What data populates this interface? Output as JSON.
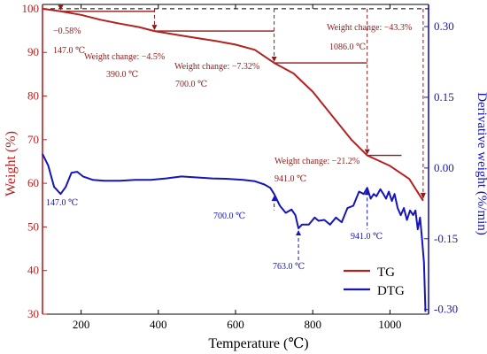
{
  "chart_data": {
    "type": "line",
    "xlabel": "Temperature (℃)",
    "ylabel_left": "Weight (%)",
    "ylabel_right": "Derivative weight (%/min)",
    "xlim": [
      100,
      1100
    ],
    "ylim_left": [
      30,
      101
    ],
    "ylim_right": [
      -0.31,
      0.347
    ],
    "x_ticks": [
      200,
      400,
      600,
      800,
      1000
    ],
    "y_left_ticks": [
      30,
      40,
      50,
      60,
      70,
      80,
      90,
      100
    ],
    "y_right_ticks": [
      -0.3,
      -0.15,
      0.0,
      0.15,
      0.3
    ],
    "y_right_tick_labels": [
      "-0.30",
      "-0.15",
      "0.00",
      "0.15",
      "0.30"
    ],
    "colors": {
      "tg": "#b22222",
      "dtg": "#1515b8",
      "left_axis": "#b22222",
      "right_axis": "#1515b8",
      "annotation_dark": "#8b1a1a"
    },
    "grid": false,
    "legend_position": "bottom-right",
    "series": [
      {
        "name": "TG",
        "axis": "left",
        "points": [
          [
            100,
            100
          ],
          [
            147,
            99.42
          ],
          [
            200,
            98.6
          ],
          [
            250,
            97.5
          ],
          [
            300,
            96.6
          ],
          [
            350,
            95.8
          ],
          [
            390,
            94.9
          ],
          [
            450,
            94.0
          ],
          [
            500,
            93.3
          ],
          [
            550,
            92.6
          ],
          [
            600,
            91.8
          ],
          [
            650,
            90.6
          ],
          [
            700,
            87.6
          ],
          [
            750,
            85.2
          ],
          [
            800,
            81.0
          ],
          [
            850,
            75.5
          ],
          [
            900,
            70.0
          ],
          [
            941,
            66.4
          ],
          [
            1000,
            64.0
          ],
          [
            1050,
            61.0
          ],
          [
            1086,
            56.0
          ]
        ]
      },
      {
        "name": "DTG",
        "axis": "right",
        "points": [
          [
            100,
            0.03
          ],
          [
            115,
            0.005
          ],
          [
            130,
            -0.04
          ],
          [
            147,
            -0.055
          ],
          [
            160,
            -0.04
          ],
          [
            175,
            -0.01
          ],
          [
            190,
            -0.008
          ],
          [
            205,
            -0.018
          ],
          [
            230,
            -0.025
          ],
          [
            260,
            -0.027
          ],
          [
            300,
            -0.027
          ],
          [
            340,
            -0.025
          ],
          [
            380,
            -0.025
          ],
          [
            420,
            -0.022
          ],
          [
            460,
            -0.018
          ],
          [
            500,
            -0.02
          ],
          [
            540,
            -0.022
          ],
          [
            580,
            -0.023
          ],
          [
            620,
            -0.025
          ],
          [
            650,
            -0.028
          ],
          [
            675,
            -0.035
          ],
          [
            690,
            -0.042
          ],
          [
            700,
            -0.055
          ],
          [
            715,
            -0.08
          ],
          [
            730,
            -0.095
          ],
          [
            745,
            -0.088
          ],
          [
            755,
            -0.1
          ],
          [
            763,
            -0.128
          ],
          [
            772,
            -0.12
          ],
          [
            790,
            -0.12
          ],
          [
            805,
            -0.105
          ],
          [
            815,
            -0.112
          ],
          [
            830,
            -0.11
          ],
          [
            845,
            -0.12
          ],
          [
            860,
            -0.105
          ],
          [
            875,
            -0.115
          ],
          [
            890,
            -0.085
          ],
          [
            905,
            -0.08
          ],
          [
            920,
            -0.05
          ],
          [
            932,
            -0.055
          ],
          [
            941,
            -0.042
          ],
          [
            950,
            -0.065
          ],
          [
            958,
            -0.055
          ],
          [
            965,
            -0.06
          ],
          [
            975,
            -0.045
          ],
          [
            983,
            -0.055
          ],
          [
            990,
            -0.065
          ],
          [
            997,
            -0.05
          ],
          [
            1005,
            -0.07
          ],
          [
            1012,
            -0.055
          ],
          [
            1020,
            -0.085
          ],
          [
            1028,
            -0.1
          ],
          [
            1036,
            -0.085
          ],
          [
            1044,
            -0.11
          ],
          [
            1052,
            -0.09
          ],
          [
            1060,
            -0.1
          ],
          [
            1066,
            -0.09
          ],
          [
            1072,
            -0.13
          ],
          [
            1078,
            -0.105
          ],
          [
            1083,
            -0.15
          ],
          [
            1088,
            -0.2
          ],
          [
            1092,
            -0.305
          ]
        ]
      }
    ],
    "annotations": {
      "tg_temps": [
        "147.0 ℃",
        "390.0 ℃",
        "700.0 ℃",
        "1086.0 ℃"
      ],
      "weight_changes": [
        "−0.58%",
        "Weight change:  −4.5%",
        "Weight change:  −7.32%",
        "Weight change:  −21.2%",
        "Weight change:  −43.3%"
      ],
      "dtg_temps": [
        "147.0 ℃",
        "700.0 ℃",
        "763.0 ℃",
        "941.0 ℃",
        "941.0 ℃"
      ]
    }
  }
}
